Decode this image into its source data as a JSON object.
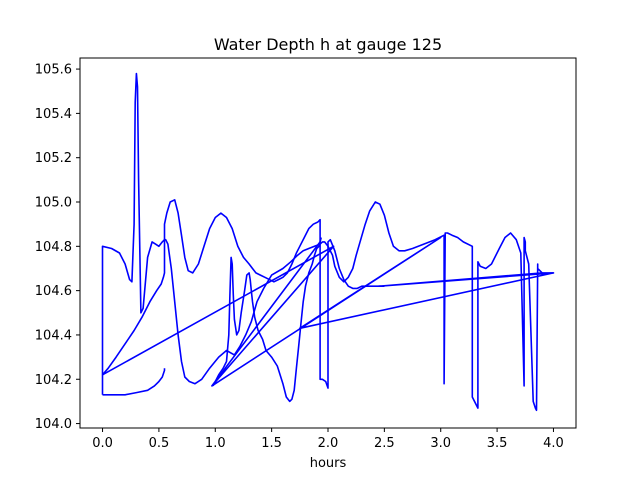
{
  "chart_data": {
    "type": "line",
    "title": "Water Depth h at gauge 125",
    "xlabel": "hours",
    "ylabel": "",
    "xlim": [
      -0.2,
      4.2
    ],
    "ylim": [
      103.98,
      105.65
    ],
    "xticks": [
      0.0,
      0.5,
      1.0,
      1.5,
      2.0,
      2.5,
      3.0,
      3.5,
      4.0
    ],
    "xtick_labels": [
      "0.0",
      "0.5",
      "1.0",
      "1.5",
      "2.0",
      "2.5",
      "3.0",
      "3.5",
      "4.0"
    ],
    "yticks": [
      104.0,
      104.2,
      104.4,
      104.6,
      104.8,
      105.0,
      105.2,
      105.4,
      105.6
    ],
    "ytick_labels": [
      "104.0",
      "104.2",
      "104.4",
      "104.6",
      "104.8",
      "105.0",
      "105.2",
      "105.4",
      "105.6"
    ],
    "grid": false,
    "series": [
      {
        "color": "#0000ff",
        "x": [
          0.0,
          0.0,
          0.08,
          0.15,
          0.2,
          0.24,
          0.26,
          0.28,
          0.29,
          0.3,
          0.31,
          0.32,
          0.34,
          0.36,
          0.4,
          0.44,
          0.47,
          0.5,
          0.53,
          0.55,
          0.56,
          0.58,
          0.61,
          0.64,
          0.67,
          0.7,
          0.73,
          0.77,
          0.82,
          0.88,
          0.95,
          1.03,
          1.1,
          1.17,
          1.22,
          1.27,
          1.32,
          1.37,
          1.43,
          1.5,
          1.6,
          1.67,
          1.73,
          1.78,
          1.83,
          1.88,
          1.93,
          1.95,
          1.97,
          2.0,
          2.04,
          2.06,
          2.1,
          2.14,
          2.18,
          2.22,
          2.25,
          2.29,
          2.33,
          2.37,
          2.42,
          2.46,
          2.5,
          2.54,
          2.58,
          2.63,
          2.68,
          2.75,
          2.85,
          2.95,
          3.03,
          3.03,
          3.04,
          3.04,
          3.06,
          3.1,
          3.15,
          3.2,
          3.28,
          3.28,
          3.3,
          3.33,
          3.33,
          3.35,
          3.4,
          3.45,
          3.52,
          3.57,
          3.62,
          3.67,
          3.71,
          3.74,
          3.74,
          3.75,
          3.75,
          3.78,
          3.82,
          3.84,
          3.85,
          3.86,
          3.86,
          3.9,
          4.0
        ],
        "y": [
          104.13,
          104.8,
          104.79,
          104.77,
          104.72,
          104.65,
          104.64,
          104.9,
          105.45,
          105.58,
          105.52,
          105.1,
          104.5,
          104.52,
          104.75,
          104.82,
          104.81,
          104.8,
          104.82,
          104.83,
          104.83,
          104.81,
          104.7,
          104.55,
          104.4,
          104.28,
          104.21,
          104.19,
          104.18,
          104.2,
          104.25,
          104.3,
          104.33,
          104.31,
          104.35,
          104.4,
          104.46,
          104.55,
          104.61,
          104.67,
          104.7,
          104.73,
          104.76,
          104.78,
          104.79,
          104.8,
          104.81,
          104.82,
          104.82,
          104.8,
          104.76,
          104.71,
          104.66,
          104.64,
          104.66,
          104.7,
          104.76,
          104.83,
          104.9,
          104.96,
          105.0,
          104.99,
          104.94,
          104.86,
          104.8,
          104.78,
          104.78,
          104.79,
          104.81,
          104.83,
          104.85,
          104.18,
          104.85,
          104.86,
          104.86,
          104.85,
          104.84,
          104.82,
          104.8,
          104.12,
          104.1,
          104.07,
          104.73,
          104.71,
          104.7,
          104.72,
          104.79,
          104.84,
          104.86,
          104.83,
          104.77,
          104.17,
          104.84,
          104.82,
          104.78,
          104.72,
          104.1,
          104.07,
          104.06,
          104.72,
          104.7,
          104.68,
          104.68
        ]
      },
      {
        "color": "#0000ff",
        "x": [
          0.0,
          0.05,
          0.12,
          0.2,
          0.28,
          0.35,
          0.42,
          0.48,
          0.52,
          0.54,
          0.55,
          0.55,
          0.57,
          0.6,
          0.64,
          0.67,
          0.7,
          0.73,
          0.76,
          0.8,
          0.85,
          0.9,
          0.95,
          1.0,
          1.05,
          1.1,
          1.15,
          1.2,
          1.25,
          1.3,
          1.33,
          1.36,
          1.4,
          1.44,
          1.48,
          1.52,
          1.56,
          1.6,
          1.64,
          1.68,
          1.72,
          1.75,
          1.79,
          1.83,
          1.87,
          1.91,
          1.93,
          1.93,
          1.95,
          1.98,
          2.0,
          2.0,
          2.02,
          2.06,
          2.1,
          2.14,
          2.18,
          2.22,
          2.26,
          2.3,
          2.34,
          2.38,
          2.42,
          2.46,
          2.5
        ],
        "y": [
          104.22,
          104.25,
          104.3,
          104.36,
          104.42,
          104.48,
          104.55,
          104.6,
          104.63,
          104.66,
          104.68,
          104.9,
          104.95,
          105.0,
          105.01,
          104.95,
          104.85,
          104.75,
          104.69,
          104.68,
          104.72,
          104.8,
          104.88,
          104.93,
          104.95,
          104.93,
          104.88,
          104.8,
          104.75,
          104.72,
          104.7,
          104.68,
          104.67,
          104.66,
          104.65,
          104.64,
          104.65,
          104.66,
          104.68,
          104.72,
          104.77,
          104.8,
          104.84,
          104.88,
          104.9,
          104.91,
          104.92,
          104.2,
          104.2,
          104.19,
          104.16,
          104.82,
          104.83,
          104.78,
          104.7,
          104.65,
          104.62,
          104.61,
          104.61,
          104.62,
          104.62,
          104.62,
          104.62,
          104.62,
          104.62
        ]
      },
      {
        "color": "#0000ff",
        "x": [
          0.0,
          0.1,
          0.2,
          0.3,
          0.4,
          0.46,
          0.5,
          0.53,
          0.55,
          0.55
        ],
        "y": [
          104.13,
          104.13,
          104.13,
          104.14,
          104.15,
          104.17,
          104.19,
          104.21,
          104.24,
          104.25
        ]
      },
      {
        "color": "#0000ff",
        "x": [
          0.98,
          1.0,
          1.03,
          1.07,
          1.1,
          1.12,
          1.13,
          1.14,
          1.15,
          1.16,
          1.17,
          1.19,
          1.21,
          1.23,
          1.26,
          1.28,
          1.3,
          1.31,
          1.32,
          1.33,
          1.35,
          1.38,
          1.42,
          1.45,
          1.5,
          1.55,
          1.6,
          1.63,
          1.66,
          1.68,
          1.7,
          1.72,
          1.74,
          1.76,
          1.78,
          1.8,
          1.83,
          1.86,
          1.88,
          1.9,
          1.92,
          1.93,
          1.94
        ],
        "y": [
          104.17,
          104.19,
          104.22,
          104.25,
          104.28,
          104.4,
          104.58,
          104.75,
          104.72,
          104.58,
          104.47,
          104.4,
          104.42,
          104.5,
          104.6,
          104.67,
          104.68,
          104.65,
          104.6,
          104.55,
          104.48,
          104.42,
          104.38,
          104.33,
          104.3,
          104.26,
          104.18,
          104.12,
          104.1,
          104.11,
          104.15,
          104.25,
          104.35,
          104.45,
          104.55,
          104.62,
          104.68,
          104.72,
          104.76,
          104.79,
          104.8,
          104.82,
          104.84
        ]
      },
      {
        "color": "#0000ff",
        "x": [
          0.0,
          2.05,
          0.97,
          1.93,
          0.97,
          3.0,
          1.75,
          3.0,
          1.75,
          4.0,
          2.45,
          3.9
        ],
        "y": [
          104.22,
          104.8,
          104.17,
          104.82,
          104.17,
          104.84,
          104.43,
          104.84,
          104.43,
          104.68,
          104.62,
          104.68
        ]
      }
    ]
  }
}
